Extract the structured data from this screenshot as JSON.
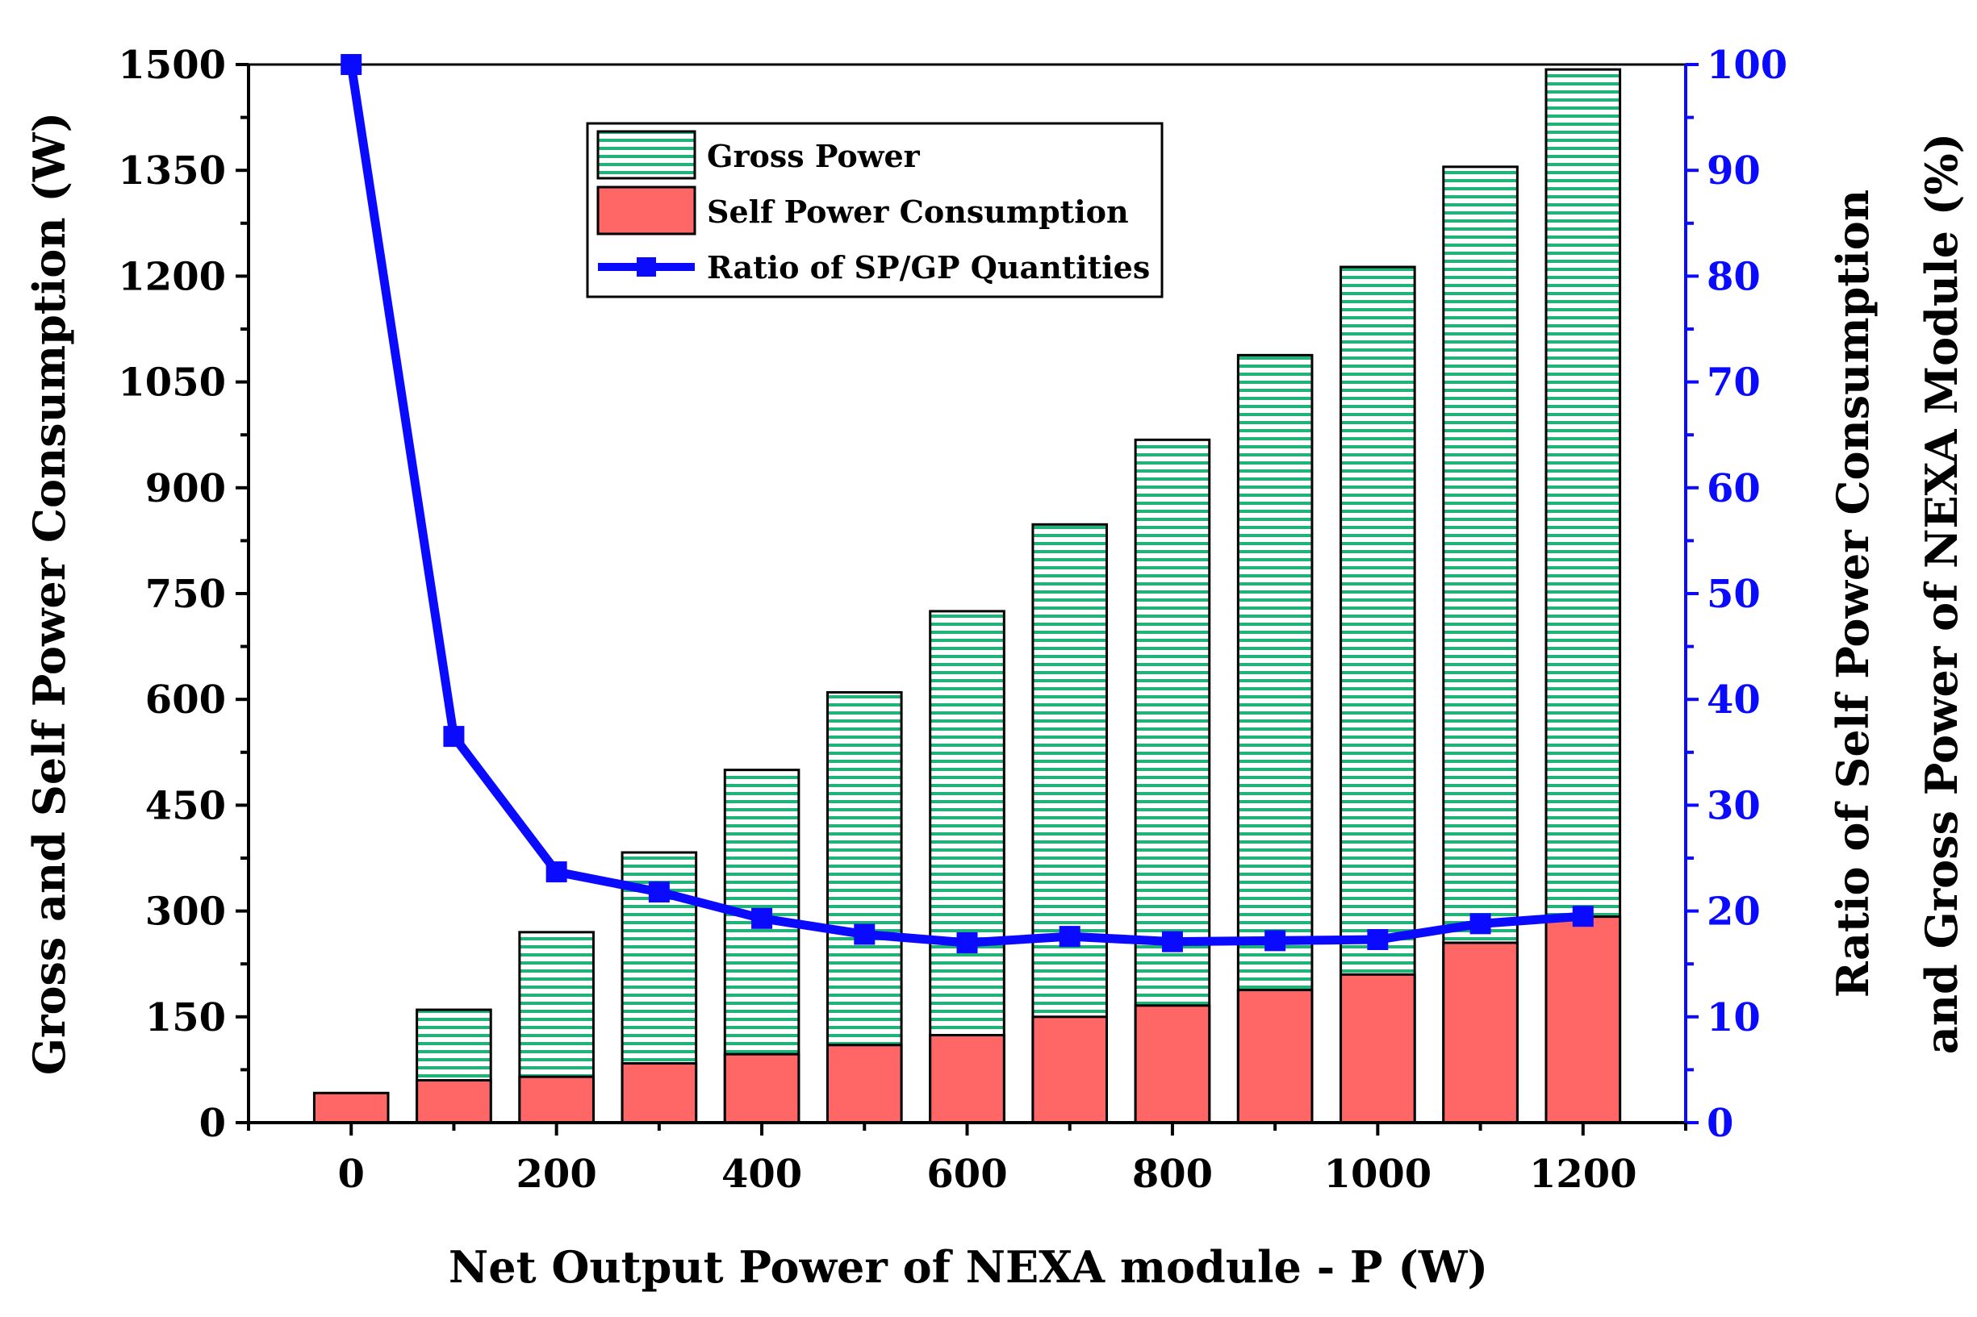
{
  "chart_data": {
    "type": "bar",
    "categories": [
      0,
      100,
      200,
      300,
      400,
      500,
      600,
      700,
      800,
      900,
      1000,
      1100,
      1200
    ],
    "xlabel": "Net Output Power of NEXA module - P (W)",
    "ylabel": "Gross and Self Power Consumption (W)",
    "ylabel_right_line1": "Ratio of Self Power Consumption",
    "ylabel_right_line2": "and Gross Power of NEXA Module (%)",
    "xlim": [
      -100,
      1300
    ],
    "xticks": [
      0,
      200,
      400,
      600,
      800,
      1000,
      1200
    ],
    "ylim": [
      0,
      1500
    ],
    "yticks": [
      0,
      150,
      300,
      450,
      600,
      750,
      900,
      1050,
      1200,
      1350,
      1500
    ],
    "ylim_right": [
      0,
      100
    ],
    "yticks_right": [
      0,
      10,
      20,
      30,
      40,
      50,
      60,
      70,
      80,
      90,
      100
    ],
    "grid": false,
    "legend_position": "top-center",
    "series": [
      {
        "name": "Gross Power",
        "kind": "bar",
        "axis": "left",
        "color": "#1fb37a",
        "values": [
          null,
          160,
          270,
          383,
          500,
          610,
          725,
          848,
          968,
          1088,
          1213,
          1355,
          1493
        ]
      },
      {
        "name": "Self Power Consumption",
        "kind": "bar",
        "axis": "left",
        "color": "#ff6666",
        "values": [
          42,
          60,
          65,
          84,
          97,
          110,
          124,
          150,
          166,
          188,
          210,
          255,
          292
        ]
      },
      {
        "name": "Ratio of SP/GP Quantities",
        "kind": "line",
        "axis": "right",
        "color": "#0a0aff",
        "values": [
          100,
          36.5,
          23.7,
          21.8,
          19.3,
          17.8,
          17.0,
          17.6,
          17.1,
          17.2,
          17.3,
          18.8,
          19.5
        ]
      }
    ]
  }
}
